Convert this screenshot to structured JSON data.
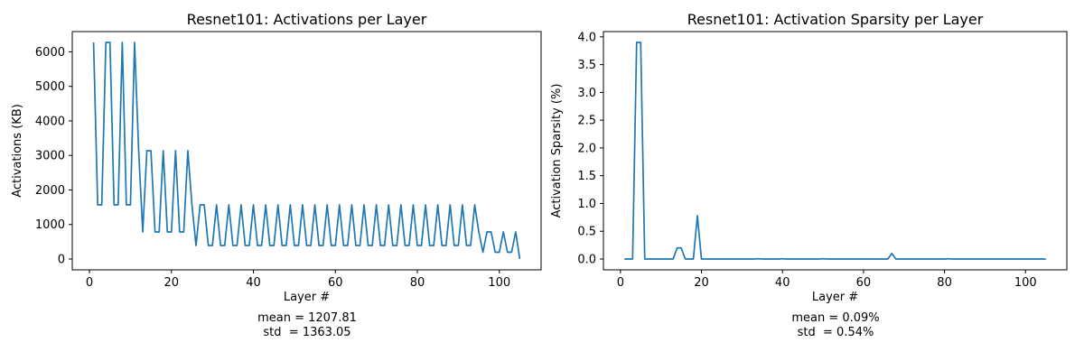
{
  "chart_data": [
    {
      "type": "line",
      "title": "Resnet101: Activations per Layer",
      "xlabel": "Layer #",
      "ylabel": "Activations (KB)",
      "xlim": [
        -4.2,
        110.2
      ],
      "ylim": [
        -314,
        6586
      ],
      "xticks": [
        0,
        20,
        40,
        60,
        80,
        100
      ],
      "yticks": [
        0,
        1000,
        2000,
        3000,
        4000,
        5000,
        6000
      ],
      "grid": false,
      "color": "#1f77b4",
      "stats": {
        "mean": "mean = 1207.81",
        "std": "std  = 1363.05"
      },
      "x_start": 1,
      "values": [
        6272,
        1568,
        1568,
        6272,
        6272,
        1568,
        1568,
        6272,
        1568,
        1568,
        6272,
        3136,
        784,
        3136,
        3136,
        784,
        784,
        3136,
        784,
        784,
        3136,
        784,
        784,
        3136,
        1568,
        392,
        1568,
        1568,
        392,
        392,
        1568,
        392,
        392,
        1568,
        392,
        392,
        1568,
        392,
        392,
        1568,
        392,
        392,
        1568,
        392,
        392,
        1568,
        392,
        392,
        1568,
        392,
        392,
        1568,
        392,
        392,
        1568,
        392,
        392,
        1568,
        392,
        392,
        1568,
        392,
        392,
        1568,
        392,
        392,
        1568,
        392,
        392,
        1568,
        392,
        392,
        1568,
        392,
        392,
        1568,
        392,
        392,
        1568,
        392,
        392,
        1568,
        392,
        392,
        1568,
        392,
        392,
        1568,
        392,
        392,
        1568,
        392,
        392,
        1568,
        784,
        196,
        784,
        784,
        196,
        196,
        784,
        196,
        196,
        784,
        0
      ]
    },
    {
      "type": "line",
      "title": "Resnet101: Activation Sparsity per Layer",
      "xlabel": "Layer #",
      "ylabel": "Activation Sparsity (%)",
      "xlim": [
        -4.2,
        110.2
      ],
      "ylim": [
        -0.195,
        4.095
      ],
      "xticks": [
        0,
        20,
        40,
        60,
        80,
        100
      ],
      "yticks": [
        0.0,
        0.5,
        1.0,
        1.5,
        2.0,
        2.5,
        3.0,
        3.5,
        4.0
      ],
      "grid": false,
      "color": "#1f77b4",
      "stats": {
        "mean": "mean = 0.09%",
        "std": "std  = 0.54%"
      },
      "x_start": 1,
      "values": [
        0,
        0,
        0,
        3.9,
        3.9,
        0,
        0,
        0,
        0,
        0,
        0,
        0,
        0,
        0.2,
        0.2,
        0,
        0,
        0,
        0.78,
        0,
        0,
        0,
        0,
        0,
        0,
        0,
        0,
        0,
        0,
        0,
        0,
        0,
        0,
        0.005,
        0,
        0,
        0,
        0,
        0,
        0.005,
        0,
        0,
        0,
        0,
        0,
        0,
        0,
        0,
        0,
        0.005,
        0,
        0,
        0,
        0,
        0,
        0,
        0,
        0,
        0,
        0,
        0,
        0,
        0,
        0,
        0,
        0,
        0.1,
        0,
        0,
        0,
        0,
        0,
        0,
        0,
        0,
        0,
        0,
        0,
        0,
        0,
        0.005,
        0,
        0,
        0,
        0,
        0,
        0,
        0,
        0,
        0,
        0,
        0,
        0,
        0,
        0,
        0,
        0,
        0,
        0,
        0,
        0,
        0,
        0,
        0,
        0
      ]
    }
  ]
}
